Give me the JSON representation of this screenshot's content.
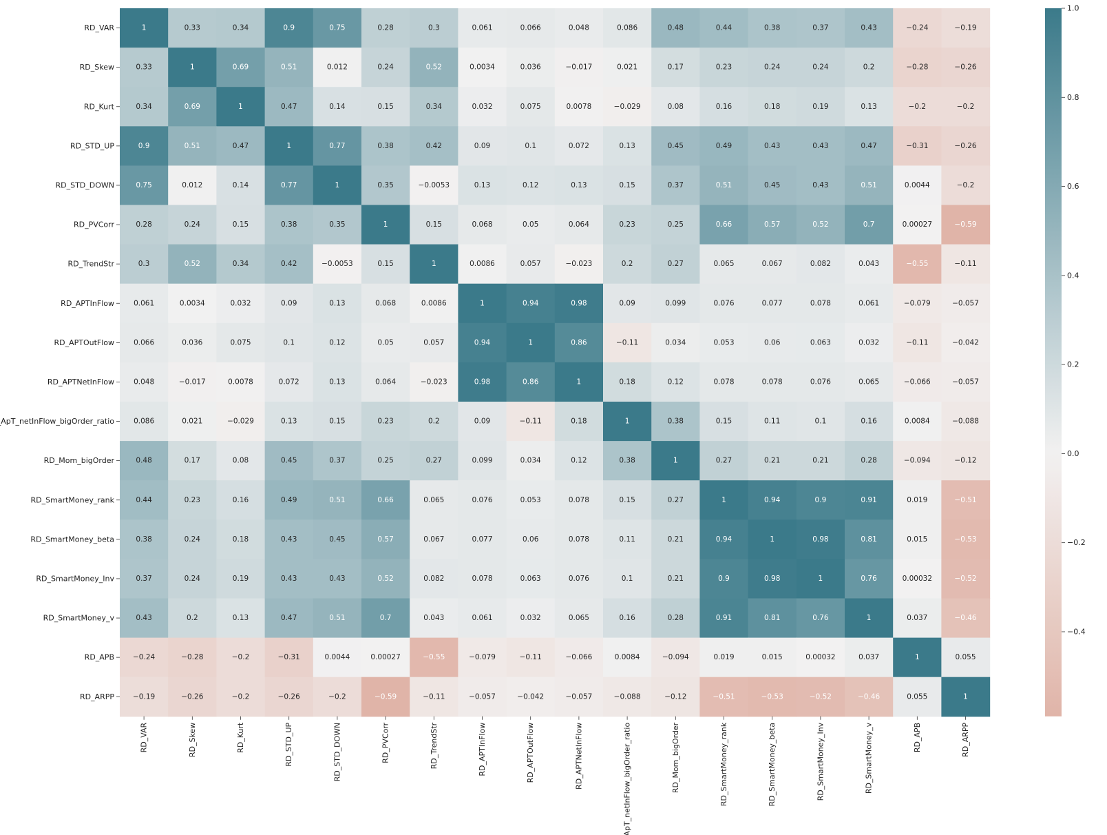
{
  "chart_data": {
    "type": "heatmap",
    "title": "",
    "xlabel": "",
    "ylabel": "",
    "labels": [
      "RD_VAR",
      "RD_Skew",
      "RD_Kurt",
      "RD_STD_UP",
      "RD_STD_DOWN",
      "RD_PVCorr",
      "RD_TrendStr",
      "RD_APTInFlow",
      "RD_APTOutFlow",
      "RD_APTNetInFlow",
      "RD_ApT_netInFlow_bigOrder_ratio",
      "RD_Mom_bigOrder",
      "RD_SmartMoney_rank",
      "RD_SmartMoney_beta",
      "RD_SmartMoney_Inv",
      "RD_SmartMoney_v",
      "RD_APB",
      "RD_ARPP"
    ],
    "values": [
      [
        1,
        0.33,
        0.34,
        0.9,
        0.75,
        0.28,
        0.3,
        0.061,
        0.066,
        0.048,
        0.086,
        0.48,
        0.44,
        0.38,
        0.37,
        0.43,
        -0.24,
        -0.19
      ],
      [
        0.33,
        1,
        0.69,
        0.51,
        0.012,
        0.24,
        0.52,
        0.0034,
        0.036,
        -0.017,
        0.021,
        0.17,
        0.23,
        0.24,
        0.24,
        0.2,
        -0.28,
        -0.26
      ],
      [
        0.34,
        0.69,
        1,
        0.47,
        0.14,
        0.15,
        0.34,
        0.032,
        0.075,
        0.0078,
        -0.029,
        0.08,
        0.16,
        0.18,
        0.19,
        0.13,
        -0.2,
        -0.2
      ],
      [
        0.9,
        0.51,
        0.47,
        1,
        0.77,
        0.38,
        0.42,
        0.09,
        0.1,
        0.072,
        0.13,
        0.45,
        0.49,
        0.43,
        0.43,
        0.47,
        -0.31,
        -0.26
      ],
      [
        0.75,
        0.012,
        0.14,
        0.77,
        1,
        0.35,
        -0.0053,
        0.13,
        0.12,
        0.13,
        0.15,
        0.37,
        0.51,
        0.45,
        0.43,
        0.51,
        0.0044,
        -0.2
      ],
      [
        0.28,
        0.24,
        0.15,
        0.38,
        0.35,
        1,
        0.15,
        0.068,
        0.05,
        0.064,
        0.23,
        0.25,
        0.66,
        0.57,
        0.52,
        0.7,
        0.00027,
        -0.59
      ],
      [
        0.3,
        0.52,
        0.34,
        0.42,
        -0.0053,
        0.15,
        1,
        0.0086,
        0.057,
        -0.023,
        0.2,
        0.27,
        0.065,
        0.067,
        0.082,
        0.043,
        -0.55,
        -0.11
      ],
      [
        0.061,
        0.0034,
        0.032,
        0.09,
        0.13,
        0.068,
        0.0086,
        1,
        0.94,
        0.98,
        0.09,
        0.099,
        0.076,
        0.077,
        0.078,
        0.061,
        -0.079,
        -0.057
      ],
      [
        0.066,
        0.036,
        0.075,
        0.1,
        0.12,
        0.05,
        0.057,
        0.94,
        1,
        0.86,
        -0.11,
        0.034,
        0.053,
        0.06,
        0.063,
        0.032,
        -0.11,
        -0.042
      ],
      [
        0.048,
        -0.017,
        0.0078,
        0.072,
        0.13,
        0.064,
        -0.023,
        0.98,
        0.86,
        1,
        0.18,
        0.12,
        0.078,
        0.078,
        0.076,
        0.065,
        -0.066,
        -0.057
      ],
      [
        0.086,
        0.021,
        -0.029,
        0.13,
        0.15,
        0.23,
        0.2,
        0.09,
        -0.11,
        0.18,
        1,
        0.38,
        0.15,
        0.11,
        0.1,
        0.16,
        0.0084,
        -0.088
      ],
      [
        0.48,
        0.17,
        0.08,
        0.45,
        0.37,
        0.25,
        0.27,
        0.099,
        0.034,
        0.12,
        0.38,
        1,
        0.27,
        0.21,
        0.21,
        0.28,
        -0.094,
        -0.12
      ],
      [
        0.44,
        0.23,
        0.16,
        0.49,
        0.51,
        0.66,
        0.065,
        0.076,
        0.053,
        0.078,
        0.15,
        0.27,
        1,
        0.94,
        0.9,
        0.91,
        0.019,
        -0.51
      ],
      [
        0.38,
        0.24,
        0.18,
        0.43,
        0.45,
        0.57,
        0.067,
        0.077,
        0.06,
        0.078,
        0.11,
        0.21,
        0.94,
        1,
        0.98,
        0.81,
        0.015,
        -0.53
      ],
      [
        0.37,
        0.24,
        0.19,
        0.43,
        0.43,
        0.52,
        0.082,
        0.078,
        0.063,
        0.076,
        0.1,
        0.21,
        0.9,
        0.98,
        1,
        0.76,
        0.00032,
        -0.52
      ],
      [
        0.43,
        0.2,
        0.13,
        0.47,
        0.51,
        0.7,
        0.043,
        0.061,
        0.032,
        0.065,
        0.16,
        0.28,
        0.91,
        0.81,
        0.76,
        1,
        0.037,
        -0.46
      ],
      [
        -0.24,
        -0.28,
        -0.2,
        -0.31,
        0.0044,
        0.00027,
        -0.55,
        -0.079,
        -0.11,
        -0.066,
        0.0084,
        -0.094,
        0.019,
        0.015,
        0.00032,
        0.037,
        1,
        0.055
      ],
      [
        -0.19,
        -0.26,
        -0.2,
        -0.26,
        -0.2,
        -0.59,
        -0.11,
        -0.057,
        -0.042,
        -0.057,
        -0.088,
        -0.12,
        -0.51,
        -0.53,
        -0.52,
        -0.46,
        0.055,
        1
      ]
    ],
    "vmin": -0.59,
    "vmax": 1.0,
    "colorbar": {
      "ticks": [
        1.0,
        0.8,
        0.6,
        0.4,
        0.2,
        0.0,
        -0.2,
        -0.4
      ],
      "tick_labels": [
        "1.0",
        "0.8",
        "0.6",
        "0.4",
        "0.2",
        "0.0",
        "−0.2",
        "−0.4"
      ]
    },
    "colors": {
      "negative": "#d48a75",
      "center": "#f2f1f1",
      "positive": "#3b7a8a",
      "light_text": "#ffffff",
      "dark_text": "#262626"
    }
  }
}
